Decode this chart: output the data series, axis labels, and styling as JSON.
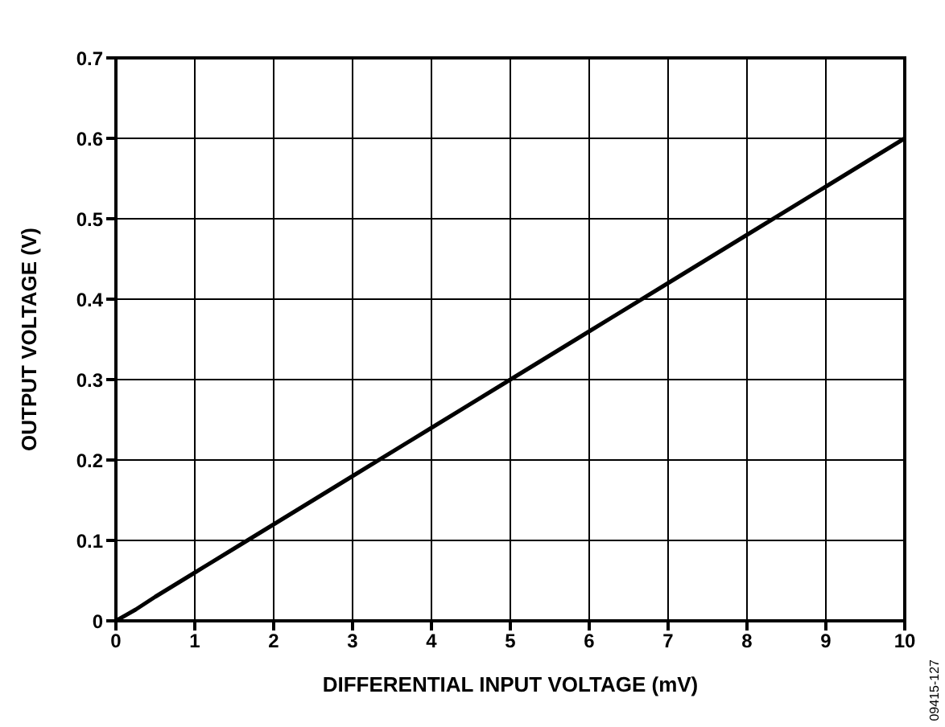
{
  "chart_data": {
    "type": "line",
    "xlabel": "DIFFERENTIAL INPUT VOLTAGE (mV)",
    "ylabel": "OUTPUT VOLTAGE (V)",
    "x": [
      0,
      0.25,
      0.5,
      0.75,
      1,
      1.5,
      2,
      3,
      4,
      5,
      6,
      7,
      8,
      9,
      10
    ],
    "series": [
      {
        "color": "#000000",
        "values": [
          0,
          0.014,
          0.03,
          0.045,
          0.06,
          0.09,
          0.12,
          0.18,
          0.24,
          0.3,
          0.36,
          0.42,
          0.48,
          0.54,
          0.6
        ]
      }
    ],
    "xlim": [
      0,
      10
    ],
    "xticks": [
      0,
      1,
      2,
      3,
      4,
      5,
      6,
      7,
      8,
      9,
      10
    ],
    "ylim": [
      0,
      0.7
    ],
    "yticks": [
      0,
      0.1,
      0.2,
      0.3,
      0.4,
      0.5,
      0.6,
      0.7
    ],
    "grid": true,
    "legend": false,
    "marker": "none",
    "line_style": "solid",
    "annotations": [
      "09415-127"
    ]
  }
}
